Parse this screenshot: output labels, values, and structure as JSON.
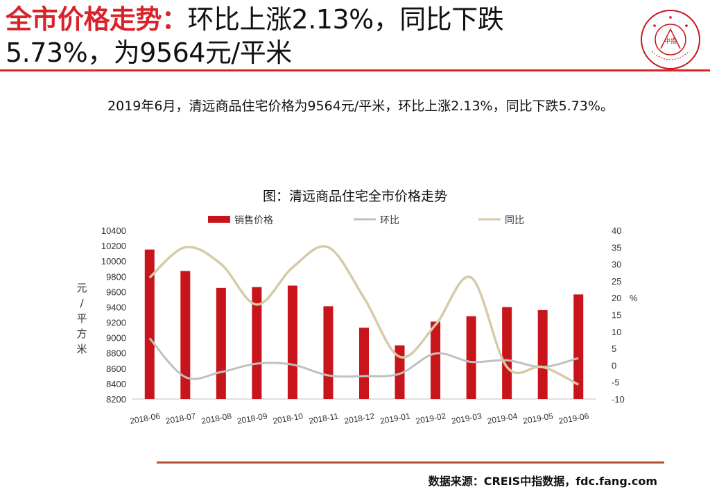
{
  "header": {
    "title_highlight": "全市价格走势：",
    "title_line1_rest": "环比上涨2.13%，同比下跌",
    "title_line2": "5.73%，为9564元/平米"
  },
  "logo": {
    "name": "CHINA INDEX ACADEMY",
    "center": "中指"
  },
  "summary": "2019年6月，清远商品住宅价格为9564元/平米，环比上涨2.13%，同比下跌5.73%。",
  "source": "数据来源：CREIS中指数据，fdc.fang.com",
  "colors": {
    "accent": "#d8232a",
    "bar": "#c8151b",
    "mom": "#c0c0c0",
    "yoy": "#d5cba6",
    "rule": "#b5542a"
  },
  "chart_data": {
    "type": "bar",
    "title": "图：清远商品住宅全市价格走势",
    "categories": [
      "2018-06",
      "2018-07",
      "2018-08",
      "2018-09",
      "2018-10",
      "2018-11",
      "2018-12",
      "2019-01",
      "2019-02",
      "2019-03",
      "2019-04",
      "2019-05",
      "2019-06"
    ],
    "ylabel": "元/平方米",
    "y2label": "%",
    "ylim": [
      8200,
      10400
    ],
    "y2lim": [
      -10,
      40
    ],
    "yticks": [
      8200,
      8400,
      8600,
      8800,
      9000,
      9200,
      9400,
      9600,
      9800,
      10000,
      10200,
      10400
    ],
    "y2ticks": [
      -10,
      -5,
      0,
      5,
      10,
      15,
      20,
      25,
      30,
      35,
      40
    ],
    "legend_position": "top",
    "series": [
      {
        "name": "销售价格",
        "type": "bar",
        "axis": "left",
        "values": [
          10150,
          9870,
          9650,
          9660,
          9680,
          9410,
          9130,
          8900,
          9210,
          9280,
          9400,
          9360,
          9564
        ]
      },
      {
        "name": "环比",
        "type": "line",
        "axis": "right",
        "values": [
          8.0,
          -3.5,
          -2.0,
          0.5,
          0.2,
          -3.0,
          -3.2,
          -2.5,
          3.5,
          1.0,
          1.5,
          -0.5,
          2.13
        ]
      },
      {
        "name": "同比",
        "type": "line",
        "axis": "right",
        "values": [
          26,
          35,
          30,
          18,
          29,
          35,
          20,
          2.5,
          12,
          26,
          -0.5,
          -0.5,
          -5.73
        ]
      }
    ]
  }
}
